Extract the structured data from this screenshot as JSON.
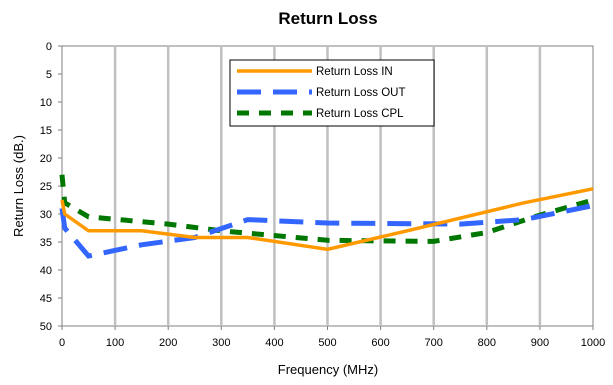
{
  "chart_data": {
    "type": "line",
    "title": "Return Loss",
    "xlabel": "Frequency (MHz)",
    "ylabel": "Return Loss (dB.)",
    "xlim": [
      0,
      1000
    ],
    "ylim": [
      0,
      50
    ],
    "y_inverted": true,
    "xticks": [
      "0",
      "100",
      "200",
      "300",
      "400",
      "500",
      "600",
      "700",
      "800",
      "900",
      "1000"
    ],
    "yticks": [
      "0",
      "5",
      "10",
      "15",
      "20",
      "25",
      "30",
      "35",
      "40",
      "45",
      "50"
    ],
    "grid": "vertical",
    "legend_position": "top-center",
    "series": [
      {
        "name": "Return Loss IN",
        "color": "#FF9900",
        "style": "solid",
        "x": [
          0,
          5,
          50,
          150,
          250,
          350,
          500,
          650,
          870,
          1000
        ],
        "y": [
          27.5,
          30,
          33,
          33,
          34.2,
          34.2,
          36.3,
          33,
          28,
          25.5
        ]
      },
      {
        "name": "Return Loss OUT",
        "color": "#3366FF",
        "style": "long-dash",
        "x": [
          0,
          5,
          50,
          150,
          250,
          350,
          500,
          750,
          870,
          1000
        ],
        "y": [
          29,
          32.5,
          37.5,
          35.5,
          34.2,
          31,
          31.6,
          31.8,
          31,
          28.5
        ]
      },
      {
        "name": "Return Loss CPL",
        "color": "#007700",
        "style": "dash",
        "x": [
          0,
          5,
          50,
          200,
          300,
          500,
          600,
          700,
          800,
          900,
          1000
        ],
        "y": [
          23,
          28,
          30.5,
          31.8,
          33,
          34.7,
          34.8,
          34.9,
          33.3,
          30.2,
          27.5
        ]
      }
    ]
  }
}
